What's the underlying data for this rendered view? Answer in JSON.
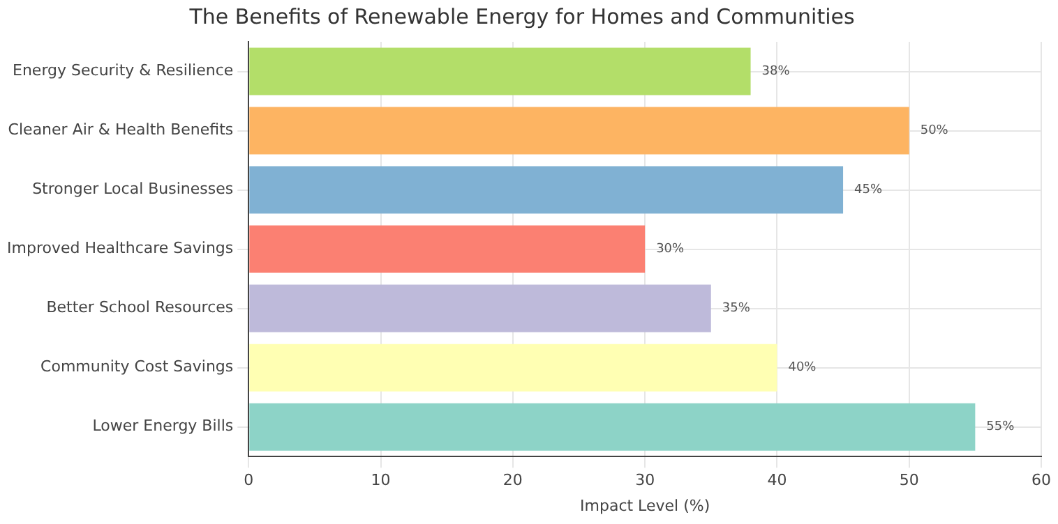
{
  "chart_data": {
    "type": "bar",
    "orientation": "horizontal",
    "title": "The Benefits of Renewable Energy for Homes and Communities",
    "xlabel": "Impact Level (%)",
    "categories": [
      "Energy Security & Resilience",
      "Cleaner Air & Health Benefits",
      "Stronger Local Businesses",
      "Improved Healthcare Savings",
      "Better School Resources",
      "Community Cost Savings",
      "Lower Energy Bills"
    ],
    "values": [
      38,
      50,
      45,
      30,
      35,
      40,
      55
    ],
    "colors": [
      "#b3de69",
      "#fdb462",
      "#80b1d3",
      "#fb8072",
      "#bebada",
      "#ffffb3",
      "#8dd3c7"
    ],
    "value_labels": [
      "38%",
      "50%",
      "45%",
      "30%",
      "35%",
      "40%",
      "55%"
    ],
    "xlim": [
      0,
      60
    ],
    "xticks": [
      0,
      10,
      20,
      30,
      40,
      50,
      60
    ],
    "grid": true,
    "legend": false
  }
}
